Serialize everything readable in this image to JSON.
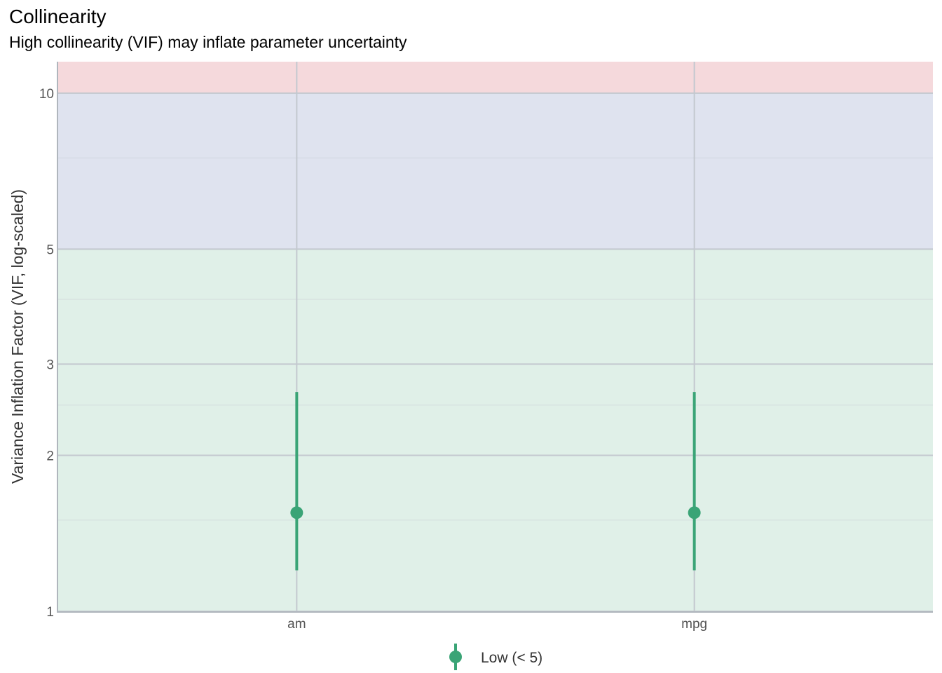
{
  "chart_data": {
    "type": "scatter",
    "title": "Collinearity",
    "subtitle": "High collinearity (VIF) may inflate parameter uncertainty",
    "xlabel": "",
    "ylabel": "Variance Inflation Factor (VIF, log-scaled)",
    "y_scale": "log",
    "ylim": [
      1,
      11.5
    ],
    "y_ticks": [
      1,
      2,
      3,
      5,
      10
    ],
    "y_minor_ticks": [
      1.5,
      2.5,
      4,
      7.5
    ],
    "categories": [
      "am",
      "mpg"
    ],
    "points": [
      {
        "term": "am",
        "vif": 1.55,
        "ci_low": 1.2,
        "ci_high": 2.65,
        "group": "Low (< 5)"
      },
      {
        "term": "mpg",
        "vif": 1.55,
        "ci_low": 1.2,
        "ci_high": 2.65,
        "group": "Low (< 5)"
      }
    ],
    "bands": [
      {
        "from": 1,
        "to": 5,
        "color": "#e0f0e8"
      },
      {
        "from": 5,
        "to": 10,
        "color": "#dfe3ef"
      },
      {
        "from": 10,
        "to": 11.5,
        "color": "#f5d9dc"
      }
    ],
    "grid": true,
    "legend": {
      "position": "bottom",
      "entries": [
        {
          "label": "Low (< 5)",
          "color": "#3aa476"
        }
      ]
    }
  }
}
